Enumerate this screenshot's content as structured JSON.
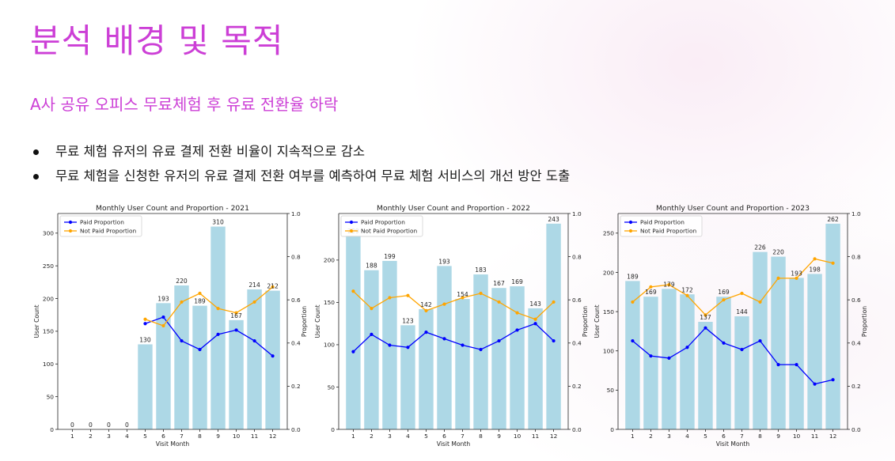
{
  "slide": {
    "title": "분석 배경 및 목적",
    "subtitle": "A사 공유 오피스 무료체험 후 유료 전환율 하락",
    "bullets": [
      "무료 체험 유저의 유료 결제 전환 비율이 지속적으로 감소",
      "무료 체험을 신청한 유저의 유료 결제 전환 여부를 예측하여 무료 체험 서비스의 개선 방안 도출"
    ]
  },
  "colors": {
    "title": "#cc3fd6",
    "bar": "#add8e6",
    "paid": "#0000ff",
    "not_paid": "#ffa500"
  },
  "chart_data": [
    {
      "type": "bar",
      "title": "Monthly User Count and Proportion - 2021",
      "xlabel": "Visit Month",
      "ylabel": "User Count",
      "y2label": "Proportion",
      "categories": [
        "1",
        "2",
        "3",
        "4",
        "5",
        "6",
        "7",
        "8",
        "9",
        "10",
        "11",
        "12"
      ],
      "values": [
        0,
        0,
        0,
        0,
        130,
        193,
        220,
        189,
        310,
        167,
        214,
        212
      ],
      "ylim": [
        0,
        330
      ],
      "yticks": [
        0,
        50,
        100,
        150,
        200,
        250,
        300
      ],
      "y2lim": [
        0,
        1.0
      ],
      "y2ticks": [
        "0.0",
        "0.2",
        "0.4",
        "0.6",
        "0.8",
        "1.0"
      ],
      "legend": "top-left",
      "series": [
        {
          "name": "Paid Proportion",
          "color": "#0000ff",
          "values": [
            null,
            null,
            null,
            null,
            0.49,
            0.52,
            0.41,
            0.37,
            0.44,
            0.46,
            0.41,
            0.34
          ]
        },
        {
          "name": "Not Paid Proportion",
          "color": "#ffa500",
          "values": [
            null,
            null,
            null,
            null,
            0.51,
            0.48,
            0.59,
            0.63,
            0.56,
            0.54,
            0.59,
            0.66
          ]
        }
      ]
    },
    {
      "type": "bar",
      "title": "Monthly User Count and Proportion - 2022",
      "xlabel": "Visit Month",
      "ylabel": "User Count",
      "y2label": "Proportion",
      "categories": [
        "1",
        "2",
        "3",
        "4",
        "5",
        "6",
        "7",
        "8",
        "9",
        "10",
        "11",
        "12"
      ],
      "values": [
        229,
        188,
        199,
        123,
        142,
        193,
        154,
        183,
        167,
        169,
        143,
        243
      ],
      "ylim": [
        0,
        255
      ],
      "yticks": [
        0,
        50,
        100,
        150,
        200
      ],
      "y2lim": [
        0,
        1.0
      ],
      "y2ticks": [
        "0.0",
        "0.2",
        "0.4",
        "0.6",
        "0.8",
        "1.0"
      ],
      "legend": "top-left",
      "series": [
        {
          "name": "Paid Proportion",
          "color": "#0000ff",
          "values": [
            0.36,
            0.44,
            0.39,
            0.38,
            0.45,
            0.42,
            0.39,
            0.37,
            0.41,
            0.46,
            0.49,
            0.41
          ]
        },
        {
          "name": "Not Paid Proportion",
          "color": "#ffa500",
          "values": [
            0.64,
            0.56,
            0.61,
            0.62,
            0.55,
            0.58,
            0.61,
            0.63,
            0.59,
            0.54,
            0.51,
            0.59
          ]
        }
      ]
    },
    {
      "type": "bar",
      "title": "Monthly User Count and Proportion - 2023",
      "xlabel": "Visit Month",
      "ylabel": "User Count",
      "y2label": "Proportion",
      "categories": [
        "1",
        "2",
        "3",
        "4",
        "5",
        "6",
        "7",
        "8",
        "9",
        "10",
        "11",
        "12"
      ],
      "values": [
        189,
        169,
        179,
        172,
        137,
        169,
        144,
        226,
        220,
        193,
        198,
        262
      ],
      "ylim": [
        0,
        275
      ],
      "yticks": [
        0,
        50,
        100,
        150,
        200,
        250
      ],
      "y2lim": [
        0,
        1.0
      ],
      "y2ticks": [
        "0.0",
        "0.2",
        "0.4",
        "0.6",
        "0.8",
        "1.0"
      ],
      "legend": "top-left",
      "series": [
        {
          "name": "Paid Proportion",
          "color": "#0000ff",
          "values": [
            0.41,
            0.34,
            0.33,
            0.38,
            0.47,
            0.4,
            0.37,
            0.41,
            0.3,
            0.3,
            0.21,
            0.23
          ]
        },
        {
          "name": "Not Paid Proportion",
          "color": "#ffa500",
          "values": [
            0.59,
            0.66,
            0.67,
            0.62,
            0.53,
            0.6,
            0.63,
            0.59,
            0.7,
            0.7,
            0.79,
            0.77
          ]
        }
      ]
    }
  ]
}
